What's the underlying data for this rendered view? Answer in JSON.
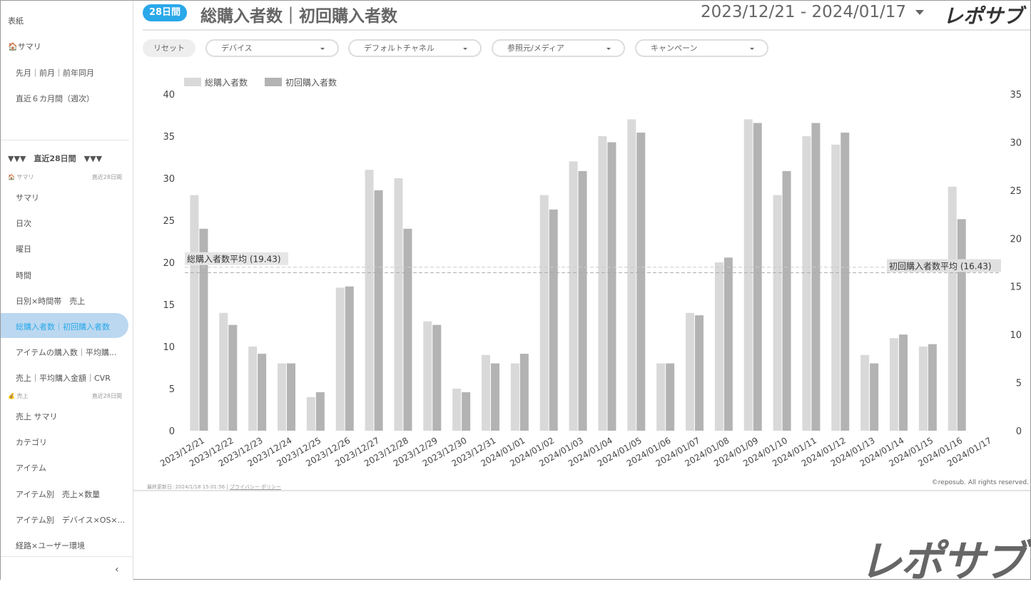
{
  "sidebar": {
    "top_items": [
      "表紙",
      "サマリ",
      "先月｜前月｜前年同月",
      "直近６カ月間（週次）"
    ],
    "section_title": "▼▼▼　直近28日間　▼▼▼",
    "group1": {
      "label": "サマリ",
      "period": "直近28日間",
      "icon": "house-icon"
    },
    "group1_items": [
      "サマリ",
      "日次",
      "曜日",
      "時間",
      "日別×時間帯　売上",
      "総購入者数｜初回購入者数",
      "アイテムの購入数｜平均購...",
      "売上｜平均購入金額｜CVR"
    ],
    "active_index": 5,
    "group2": {
      "label": "売上",
      "period": "直近28日間",
      "icon": "money-bag-icon"
    },
    "group2_items": [
      "売上 サマリ",
      "カテゴリ",
      "アイテム",
      "アイテム別　売上×数量",
      "アイテム別　デバイス×OS×...",
      "経路×ユーザー環境"
    ],
    "collapse_icon": "chevron-left-icon"
  },
  "header": {
    "badge": "28日間",
    "title": "総購入者数｜初回購入者数",
    "date_range": "2023/12/21 - 2024/01/17",
    "logo": "レポサブ"
  },
  "filters": {
    "reset": "リセット",
    "items": [
      "デバイス",
      "デフォルトチャネル",
      "参照元/メディア",
      "キャンペーン"
    ]
  },
  "footer": {
    "updated": "最終更新日: 2024/1/18 15:01:56",
    "privacy": "プライバシー ポリシー",
    "copyright": "©reposub. All rights reserved."
  },
  "big_logo": "レポサブ",
  "colors": {
    "accent": "#29a8ea",
    "total": "#d9d9d9",
    "first": "#b3b3b3",
    "active_bg": "#bcd8f0"
  },
  "chart_data": {
    "type": "bar",
    "categories": [
      "2023/12/21",
      "2023/12/22",
      "2023/12/23",
      "2023/12/24",
      "2023/12/25",
      "2023/12/26",
      "2023/12/27",
      "2023/12/28",
      "2023/12/29",
      "2023/12/30",
      "2023/12/31",
      "2024/01/01",
      "2024/01/02",
      "2024/01/03",
      "2024/01/04",
      "2024/01/05",
      "2024/01/06",
      "2024/01/07",
      "2024/01/08",
      "2024/01/09",
      "2024/01/10",
      "2024/01/11",
      "2024/01/12",
      "2024/01/13",
      "2024/01/14",
      "2024/01/15",
      "2024/01/16",
      "2024/01/17"
    ],
    "series": [
      {
        "name": "総購入者数",
        "axis": "left",
        "color": "#d9d9d9",
        "values": [
          28,
          14,
          10,
          8,
          4,
          17,
          31,
          30,
          13,
          5,
          9,
          8,
          28,
          32,
          35,
          37,
          8,
          14,
          20,
          37,
          28,
          35,
          34,
          9,
          11,
          10,
          29,
          0
        ]
      },
      {
        "name": "初回購入者数",
        "axis": "right",
        "color": "#b3b3b3",
        "values": [
          21,
          11,
          8,
          7,
          4,
          15,
          25,
          21,
          11,
          4,
          7,
          8,
          23,
          27,
          30,
          31,
          7,
          12,
          18,
          32,
          27,
          32,
          31,
          7,
          10,
          9,
          22,
          0
        ]
      }
    ],
    "y_left": {
      "ylim": [
        0,
        40
      ],
      "ticks": [
        0,
        5,
        10,
        15,
        20,
        25,
        30,
        35,
        40
      ]
    },
    "y_right": {
      "ylim": [
        0,
        35
      ],
      "ticks": [
        0,
        5,
        10,
        15,
        20,
        25,
        30,
        35
      ]
    },
    "reference_lines": [
      {
        "label": "総購入者数平均 (19.43)",
        "value": 19.43,
        "axis": "left"
      },
      {
        "label": "初回購入者数平均 (16.43)",
        "value": 16.43,
        "axis": "right"
      }
    ],
    "legend": "top-left",
    "grid": false
  }
}
